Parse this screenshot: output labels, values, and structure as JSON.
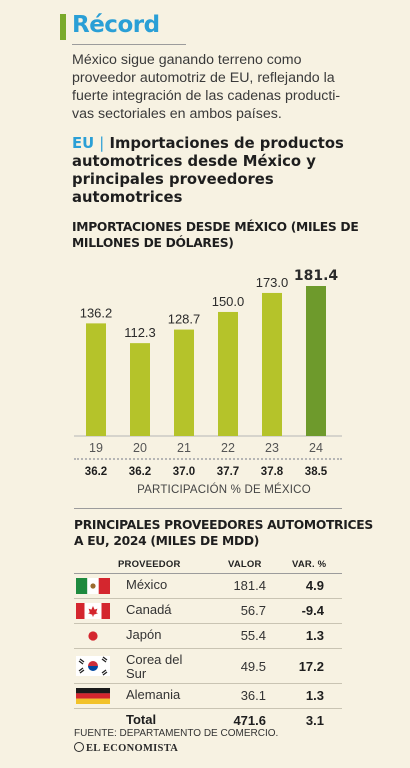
{
  "header": {
    "title": "Récord",
    "intro": "México sigue ganando terreno como proveedor automotriz de EU, reflejando la fuerte integración de las cadenas producti-vas sectoriales en ambos países.",
    "country_tag": "EU",
    "separator": "|",
    "heading": "Importaciones de productos automotrices desde México y principales proveedores automotrices"
  },
  "chart_data": {
    "type": "bar",
    "title": "IMPORTACIONES DESDE MÉXICO (MILES DE MILLONES DE DÓLARES)",
    "categories": [
      "19",
      "20",
      "21",
      "22",
      "23",
      "24"
    ],
    "values": [
      136.2,
      112.3,
      128.7,
      150.0,
      173.0,
      181.4
    ],
    "value_labels": [
      "136.2",
      "112.3",
      "128.7",
      "150.0",
      "173.0",
      "181.4"
    ],
    "highlight_index": 5,
    "colors": {
      "bar": "#b5c32a",
      "highlight": "#6e9a2c"
    },
    "share": [
      "36.2",
      "36.2",
      "37.0",
      "37.7",
      "37.8",
      "38.5"
    ],
    "share_label": "PARTICIPACIÓN % DE MÉXICO",
    "grid": false
  },
  "table": {
    "title": "PRINCIPALES PROVEEDORES AUTOMOTRICES A EU, 2024 (MILES DE MDD)",
    "headers": {
      "provider": "PROVEEDOR",
      "value": "VALOR",
      "var": "VAR. %"
    },
    "rows": [
      {
        "flag": "mexico-flag-icon",
        "name": "México",
        "value": "181.4",
        "var": "4.9"
      },
      {
        "flag": "canada-flag-icon",
        "name": "Canadá",
        "value": "56.7",
        "var": "-9.4"
      },
      {
        "flag": "japan-flag-icon",
        "name": "Japón",
        "value": "55.4",
        "var": "1.3"
      },
      {
        "flag": "south-korea-flag-icon",
        "name": "Corea del Sur",
        "value": "49.5",
        "var": "17.2"
      },
      {
        "flag": "germany-flag-icon",
        "name": "Alemania",
        "value": "36.1",
        "var": "1.3"
      }
    ],
    "total": {
      "name": "Total",
      "value": "471.6",
      "var": "3.1"
    }
  },
  "footer": {
    "source": "FUENTE: DEPARTAMENTO DE COMERCIO.",
    "brand": "EL ECONOMISTA"
  }
}
